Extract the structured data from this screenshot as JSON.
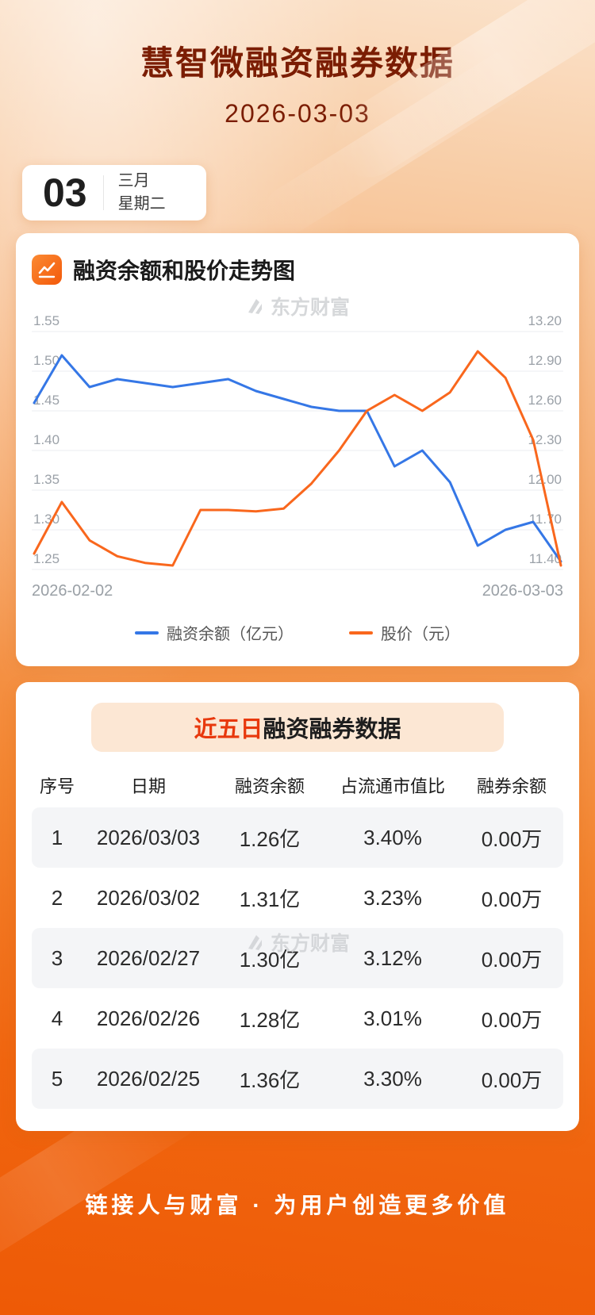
{
  "header": {
    "title": "慧智微融资融券数据",
    "date": "2026-03-03"
  },
  "date_card": {
    "day": "03",
    "month": "三月",
    "weekday": "星期二"
  },
  "chart_section": {
    "title": "融资余额和股价走势图",
    "watermark": "东方财富"
  },
  "chart_data": {
    "type": "line",
    "title": "融资余额和股价走势图",
    "legend_position": "bottom",
    "grid": true,
    "x_start_label": "2026-02-02",
    "x_end_label": "2026-03-03",
    "left_axis": {
      "min": 1.25,
      "max": 1.55
    },
    "right_axis": {
      "min": 11.4,
      "max": 13.2
    },
    "left_tick_labels": [
      "1.55",
      "1.50",
      "1.45",
      "1.40",
      "1.35",
      "1.30",
      "1.25"
    ],
    "right_tick_labels": [
      "13.20",
      "12.90",
      "12.60",
      "12.30",
      "12.00",
      "11.70",
      "11.40"
    ],
    "series": [
      {
        "name": "融资余额（亿元）",
        "axis": "left",
        "color": "#3577e6",
        "values": [
          1.46,
          1.52,
          1.48,
          1.49,
          1.485,
          1.48,
          1.485,
          1.49,
          1.475,
          1.465,
          1.455,
          1.45,
          1.45,
          1.38,
          1.4,
          1.36,
          1.28,
          1.3,
          1.31,
          1.26
        ]
      },
      {
        "name": "股价（元）",
        "axis": "right",
        "color": "#f9671d",
        "values": [
          11.52,
          11.91,
          11.62,
          11.5,
          11.45,
          11.43,
          11.85,
          11.85,
          11.84,
          11.86,
          12.05,
          12.3,
          12.6,
          12.72,
          12.6,
          12.74,
          13.05,
          12.85,
          12.38,
          11.43
        ]
      }
    ]
  },
  "table_section": {
    "title_highlight": "近五日",
    "title_rest": "融资融券数据",
    "watermark": "东方财富",
    "columns": [
      "序号",
      "日期",
      "融资余额",
      "占流通市值比",
      "融券余额"
    ],
    "rows": [
      {
        "no": "1",
        "date": "2026/03/03",
        "balance": "1.26亿",
        "ratio": "3.40%",
        "short_balance": "0.00万"
      },
      {
        "no": "2",
        "date": "2026/03/02",
        "balance": "1.31亿",
        "ratio": "3.23%",
        "short_balance": "0.00万"
      },
      {
        "no": "3",
        "date": "2026/02/27",
        "balance": "1.30亿",
        "ratio": "3.12%",
        "short_balance": "0.00万"
      },
      {
        "no": "4",
        "date": "2026/02/26",
        "balance": "1.28亿",
        "ratio": "3.01%",
        "short_balance": "0.00万"
      },
      {
        "no": "5",
        "date": "2026/02/25",
        "balance": "1.36亿",
        "ratio": "3.30%",
        "short_balance": "0.00万"
      }
    ]
  },
  "footer": {
    "slogan": "链接人与财富 · 为用户创造更多价值"
  }
}
